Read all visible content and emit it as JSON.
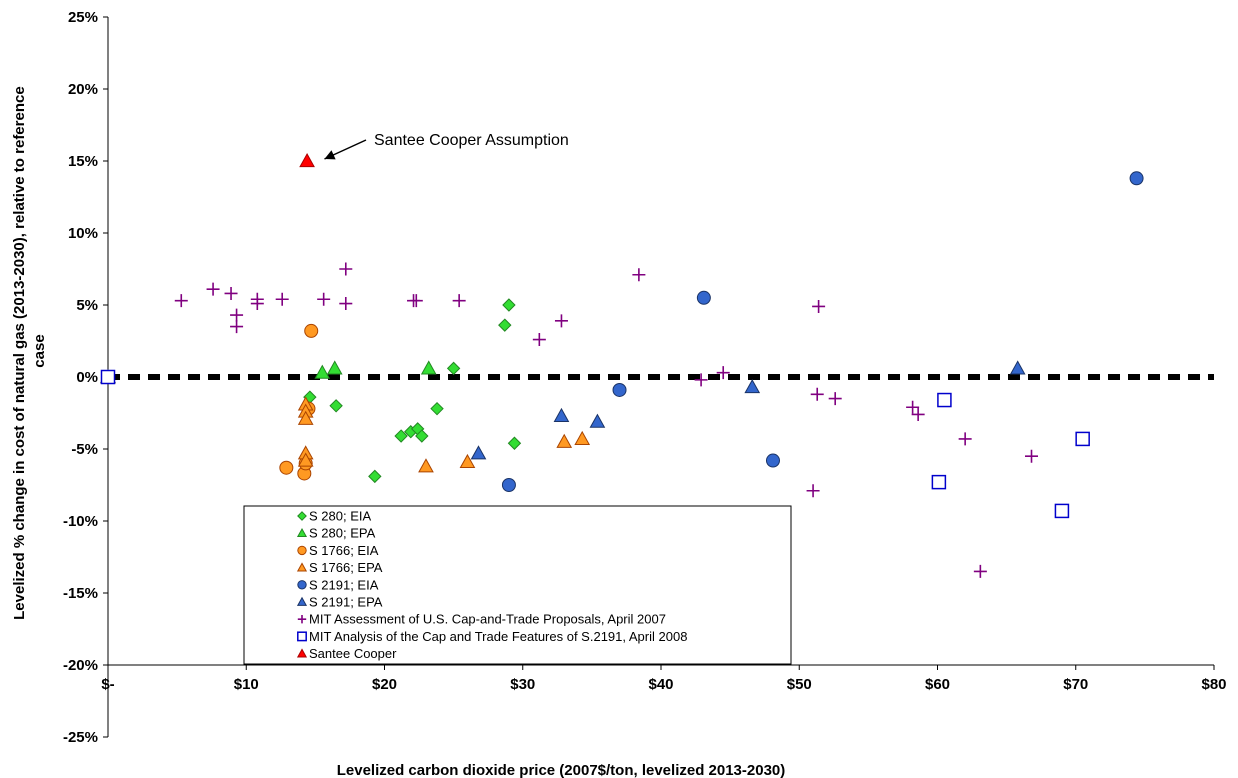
{
  "chart_data": {
    "type": "scatter",
    "xlabel": "Levelized carbon dioxide price (2007$/ton, levelized 2013-2030)",
    "ylabel_lines": [
      "Levelized % change in cost of natural gas (2013-2030), relative to reference",
      "case"
    ],
    "xlim": [
      0,
      80
    ],
    "ylim": [
      -25,
      25
    ],
    "x_ticks": [
      {
        "value": 0,
        "label": "$-"
      },
      {
        "value": 10,
        "label": "$10"
      },
      {
        "value": 20,
        "label": "$20"
      },
      {
        "value": 30,
        "label": "$30"
      },
      {
        "value": 40,
        "label": "$40"
      },
      {
        "value": 50,
        "label": "$50"
      },
      {
        "value": 60,
        "label": "$60"
      },
      {
        "value": 70,
        "label": "$70"
      },
      {
        "value": 80,
        "label": "$80"
      }
    ],
    "y_ticks": [
      {
        "value": 25,
        "label": "25%"
      },
      {
        "value": 20,
        "label": "20%"
      },
      {
        "value": 15,
        "label": "15%"
      },
      {
        "value": 10,
        "label": "10%"
      },
      {
        "value": 5,
        "label": "5%"
      },
      {
        "value": 0,
        "label": "0%"
      },
      {
        "value": -5,
        "label": "-5%"
      },
      {
        "value": -10,
        "label": "-10%"
      },
      {
        "value": -15,
        "label": "-15%"
      },
      {
        "value": -20,
        "label": "-20%"
      },
      {
        "value": -25,
        "label": "-25%"
      }
    ],
    "reference_line": {
      "y": 0,
      "style": "dashed",
      "color": "#000000"
    },
    "grid": false,
    "legend_placement": "bottom-left inside plot",
    "annotation": {
      "text": "Santee Cooper Assumption",
      "arrow_to": {
        "x": 14.5,
        "y": 15
      }
    },
    "series": [
      {
        "name": "S 280; EIA",
        "marker": "diamond",
        "fill": "#33dd33",
        "stroke": "#228822",
        "points": [
          [
            0,
            0
          ],
          [
            14.6,
            -1.4
          ],
          [
            16.5,
            -2
          ],
          [
            19.3,
            -6.9
          ],
          [
            21.2,
            -4.1
          ],
          [
            21.9,
            -3.8
          ],
          [
            22.4,
            -3.6
          ],
          [
            22.7,
            -4.1
          ],
          [
            23.8,
            -2.2
          ],
          [
            25,
            0.6
          ],
          [
            28.7,
            3.6
          ],
          [
            29,
            5
          ],
          [
            29.4,
            -4.6
          ]
        ]
      },
      {
        "name": "S 280; EPA",
        "marker": "triangle",
        "fill": "#33dd33",
        "stroke": "#228822",
        "points": [
          [
            0,
            0
          ],
          [
            15.5,
            0.3
          ],
          [
            16.4,
            0.6
          ],
          [
            23.2,
            0.6
          ]
        ]
      },
      {
        "name": "S 1766; EIA",
        "marker": "circle",
        "fill": "#ff9922",
        "stroke": "#aa4400",
        "points": [
          [
            0,
            0
          ],
          [
            12.9,
            -6.3
          ],
          [
            14.2,
            -6.7
          ],
          [
            14.3,
            -6
          ],
          [
            14.5,
            -2.2
          ],
          [
            14.7,
            3.2
          ]
        ]
      },
      {
        "name": "S 1766; EPA",
        "marker": "triangle",
        "fill": "#ff9922",
        "stroke": "#aa4400",
        "points": [
          [
            0,
            0
          ],
          [
            14.3,
            -1.9
          ],
          [
            14.3,
            -2.4
          ],
          [
            14.3,
            -2.9
          ],
          [
            14.3,
            -5.3
          ],
          [
            14.3,
            -5.8
          ],
          [
            23,
            -6.2
          ],
          [
            26,
            -5.9
          ],
          [
            33,
            -4.5
          ],
          [
            34.3,
            -4.3
          ]
        ]
      },
      {
        "name": "S 2191; EIA",
        "marker": "circle",
        "fill": "#3366cc",
        "stroke": "#1a3366",
        "points": [
          [
            0,
            0
          ],
          [
            29,
            -7.5
          ],
          [
            37,
            -0.9
          ],
          [
            43.1,
            5.5
          ],
          [
            48.1,
            -5.8
          ],
          [
            74.4,
            13.8
          ]
        ]
      },
      {
        "name": "S 2191; EPA",
        "marker": "triangle",
        "fill": "#3366cc",
        "stroke": "#1a3366",
        "points": [
          [
            0,
            0
          ],
          [
            26.8,
            -5.3
          ],
          [
            32.8,
            -2.7
          ],
          [
            35.4,
            -3.1
          ],
          [
            46.6,
            -0.7
          ],
          [
            65.8,
            0.6
          ]
        ]
      },
      {
        "name": "MIT Assessment of U.S. Cap-and-Trade Proposals, April 2007",
        "marker": "plus",
        "fill": "none",
        "stroke": "#800080",
        "points": [
          [
            0,
            0
          ],
          [
            5.3,
            5.3
          ],
          [
            7.6,
            6.1
          ],
          [
            8.9,
            5.8
          ],
          [
            9.3,
            4.3
          ],
          [
            9.3,
            3.5
          ],
          [
            10.8,
            5.4
          ],
          [
            10.8,
            5.1
          ],
          [
            12.6,
            5.4
          ],
          [
            15.6,
            5.4
          ],
          [
            17.2,
            7.5
          ],
          [
            17.2,
            5.1
          ],
          [
            22.1,
            5.3
          ],
          [
            22.3,
            5.3
          ],
          [
            25.4,
            5.3
          ],
          [
            31.2,
            2.6
          ],
          [
            32.8,
            3.9
          ],
          [
            38.4,
            7.1
          ],
          [
            42.9,
            -0.2
          ],
          [
            44.5,
            0.3
          ],
          [
            51,
            -7.9
          ],
          [
            51.3,
            -1.2
          ],
          [
            51.4,
            4.9
          ],
          [
            52.6,
            -1.5
          ],
          [
            58.2,
            -2.1
          ],
          [
            58.6,
            -2.6
          ],
          [
            62,
            -4.3
          ],
          [
            63.1,
            -13.5
          ],
          [
            66.8,
            -5.5
          ]
        ]
      },
      {
        "name": "MIT Analysis of the Cap and Trade Features of S.2191, April 2008",
        "marker": "square",
        "fill": "#ffffff",
        "stroke": "#0000cc",
        "points": [
          [
            0,
            0
          ],
          [
            60.1,
            -7.3
          ],
          [
            60.5,
            -1.6
          ],
          [
            69,
            -9.3
          ],
          [
            70.5,
            -4.3
          ]
        ]
      },
      {
        "name": "Santee Cooper",
        "marker": "triangle",
        "fill": "#ff0000",
        "stroke": "#aa0000",
        "points": [
          [
            14.4,
            15
          ]
        ]
      }
    ]
  }
}
